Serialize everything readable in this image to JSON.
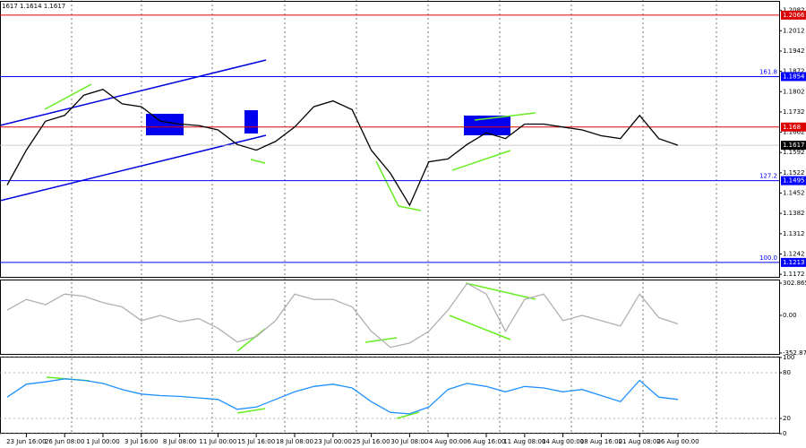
{
  "header": "1617 1.1614 1.1617",
  "chart_data": [
    {
      "type": "line",
      "color": "#000000",
      "categories": [
        null,
        "23 Jun 16:00",
        null,
        "26 Jun 08:00",
        null,
        "1 Jul 00:00",
        null,
        "3 Jul 16:00",
        null,
        "8 Jul 08:00",
        null,
        "11 Jul 00:00",
        null,
        "15 Jul 16:00",
        null,
        "18 Jul 08:00",
        null,
        "23 Jul 00:00",
        null,
        "25 Jul 16:00",
        null,
        "30 Jul 08:00",
        null,
        "4 Aug 00:00",
        null,
        "6 Aug 16:00",
        null,
        "11 Aug 08:00",
        null,
        "14 Aug 00:00",
        null,
        "18 Aug 16:00",
        null,
        "21 Aug 08:00",
        null,
        "26 Aug 00:00"
      ],
      "values": [
        1.148,
        1.16,
        1.17,
        1.172,
        1.179,
        1.181,
        1.176,
        1.175,
        1.17,
        1.169,
        1.1685,
        1.167,
        1.162,
        1.16,
        1.163,
        1.168,
        1.175,
        1.177,
        1.174,
        1.16,
        1.152,
        1.141,
        1.156,
        1.157,
        1.162,
        1.166,
        1.164,
        1.169,
        1.169,
        1.168,
        1.167,
        1.165,
        1.164,
        1.172,
        1.164,
        1.1617
      ],
      "ylim": [
        1.116,
        1.2112
      ],
      "yticks": [
        1.2082,
        1.2012,
        1.1942,
        1.1872,
        1.1802,
        1.1732,
        1.1662,
        1.1592,
        1.1522,
        1.1452,
        1.1382,
        1.1312,
        1.1242,
        1.1172
      ],
      "levels": [
        {
          "value": 1.2066,
          "color": "#dd0000"
        },
        {
          "value": 1.1854,
          "color": "#0000ff",
          "name": "161.8"
        },
        {
          "value": 1.168,
          "color": "#dd0000"
        },
        {
          "value": 1.1495,
          "color": "#0000ff",
          "name": "127.2"
        },
        {
          "value": 1.1213,
          "color": "#0000ff",
          "name": "100.0"
        }
      ],
      "last_price": 1.1617
    },
    {
      "type": "line",
      "color": "#b0b0b0",
      "values": [
        50,
        150,
        100,
        200,
        180,
        120,
        80,
        -50,
        0,
        -60,
        -30,
        -120,
        -250,
        -200,
        -50,
        200,
        150,
        150,
        80,
        -150,
        -300,
        -260,
        -150,
        50,
        300,
        200,
        -150,
        150,
        200,
        -50,
        0,
        -50,
        -100,
        200,
        -20,
        -80
      ],
      "ylim": [
        -370,
        328
      ],
      "yticks": [
        302.8654,
        {
          "value": 0,
          "label": "0.00"
        },
        -352.872
      ]
    },
    {
      "type": "line",
      "color": "#1e90ff",
      "grid": true,
      "values": [
        48,
        65,
        68,
        72,
        70,
        66,
        58,
        52,
        50,
        49,
        47,
        45,
        32,
        35,
        45,
        55,
        62,
        65,
        60,
        42,
        28,
        26,
        35,
        58,
        66,
        62,
        55,
        62,
        60,
        55,
        58,
        50,
        42,
        70,
        48,
        45
      ],
      "ylim": [
        0,
        100
      ],
      "yticks": [
        100,
        80,
        20,
        0
      ]
    }
  ]
}
